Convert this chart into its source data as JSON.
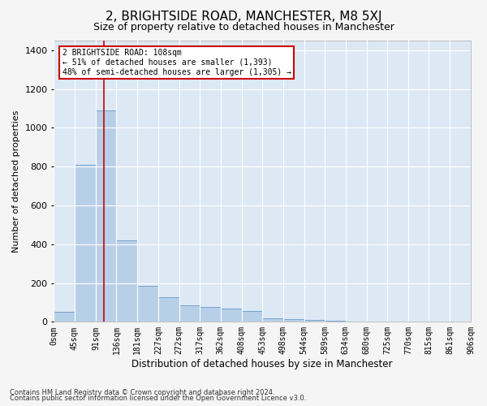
{
  "title": "2, BRIGHTSIDE ROAD, MANCHESTER, M8 5XJ",
  "subtitle": "Size of property relative to detached houses in Manchester",
  "xlabel": "Distribution of detached houses by size in Manchester",
  "ylabel": "Number of detached properties",
  "annotation_line1": "2 BRIGHTSIDE ROAD: 108sqm",
  "annotation_line2": "← 51% of detached houses are smaller (1,393)",
  "annotation_line3": "48% of semi-detached houses are larger (1,305) →",
  "footer1": "Contains HM Land Registry data © Crown copyright and database right 2024.",
  "footer2": "Contains public sector information licensed under the Open Government Licence v3.0.",
  "property_size": 108,
  "bin_edges": [
    0,
    45,
    91,
    136,
    181,
    227,
    272,
    317,
    362,
    408,
    453,
    498,
    544,
    589,
    634,
    680,
    725,
    770,
    815,
    861,
    906
  ],
  "bar_heights": [
    50,
    810,
    1090,
    420,
    185,
    125,
    85,
    75,
    70,
    55,
    18,
    15,
    10,
    5,
    3,
    2,
    1,
    1,
    0,
    0
  ],
  "bar_color": "#b8cfe8",
  "bar_edge_color": "#6699cc",
  "vline_color": "#cc0000",
  "vline_x": 108,
  "ylim": [
    0,
    1450
  ],
  "yticks": [
    0,
    200,
    400,
    600,
    800,
    1000,
    1200,
    1400
  ],
  "plot_bg_color": "#dde8f5",
  "grid_color": "#ffffff",
  "annotation_box_color": "#ffffff",
  "annotation_box_edge": "#cc0000",
  "title_fontsize": 11,
  "subtitle_fontsize": 9,
  "tick_label_fontsize": 7,
  "ylabel_fontsize": 8,
  "xlabel_fontsize": 8.5
}
